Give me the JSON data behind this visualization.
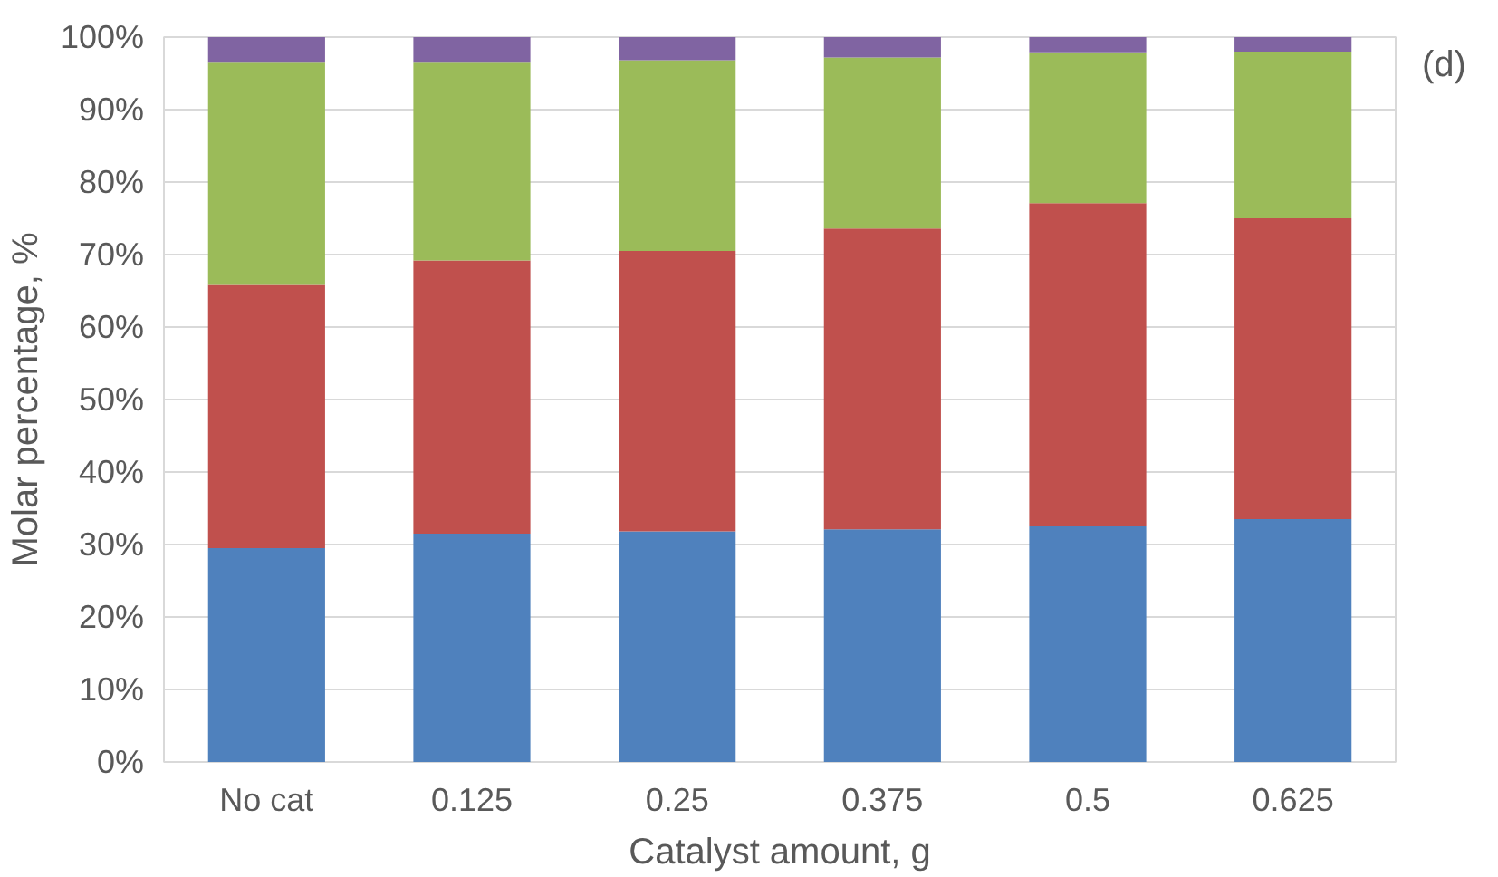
{
  "chart_data": {
    "type": "bar",
    "stacked": true,
    "xlabel": "Catalyst amount, g",
    "ylabel": "Molar percentage, %",
    "categories": [
      "No cat",
      "0.125",
      "0.25",
      "0.375",
      "0.5",
      "0.625"
    ],
    "series": [
      {
        "color": "#4f81bd",
        "values": [
          29.5,
          31.5,
          31.8,
          32.1,
          32.5,
          33.5
        ]
      },
      {
        "color": "#c0504d",
        "values": [
          36.3,
          37.7,
          38.7,
          41.5,
          44.6,
          41.5
        ]
      },
      {
        "color": "#9bbb59",
        "values": [
          30.8,
          27.4,
          26.3,
          23.6,
          20.8,
          23.0
        ]
      },
      {
        "color": "#8064a2",
        "values": [
          3.4,
          3.4,
          3.2,
          2.8,
          2.1,
          2.0
        ]
      }
    ],
    "ylim": [
      0,
      100
    ],
    "yticks": [
      {
        "value": 0,
        "label": "0%"
      },
      {
        "value": 10,
        "label": "10%"
      },
      {
        "value": 20,
        "label": "20%"
      },
      {
        "value": 30,
        "label": "30%"
      },
      {
        "value": 40,
        "label": "40%"
      },
      {
        "value": 50,
        "label": "50%"
      },
      {
        "value": 60,
        "label": "60%"
      },
      {
        "value": 70,
        "label": "70%"
      },
      {
        "value": 80,
        "label": "80%"
      },
      {
        "value": 90,
        "label": "90%"
      },
      {
        "value": 100,
        "label": "100%"
      }
    ],
    "grid": "y",
    "annotations": [
      "(d)"
    ]
  }
}
